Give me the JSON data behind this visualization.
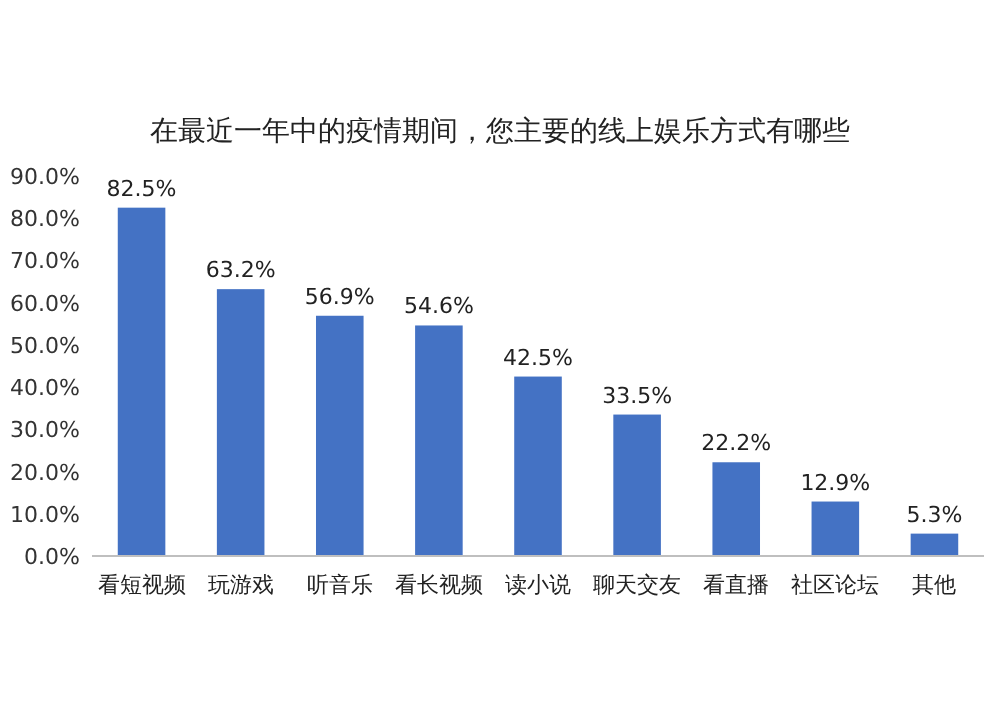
{
  "chart_data": {
    "type": "bar",
    "title": "在最近一年中的疫情期间，您主要的线上娱乐方式有哪些",
    "categories": [
      "看短视频",
      "玩游戏",
      "听音乐",
      "看长视频",
      "读小说",
      "聊天交友",
      "看直播",
      "社区论坛",
      "其他"
    ],
    "values": [
      82.5,
      63.2,
      56.9,
      54.6,
      42.5,
      33.5,
      22.2,
      12.9,
      5.3
    ],
    "value_labels": [
      "82.5%",
      "63.2%",
      "56.9%",
      "54.6%",
      "42.5%",
      "33.5%",
      "22.2%",
      "12.9%",
      "5.3%"
    ],
    "color": "#4472c4",
    "ylim": [
      0,
      90
    ],
    "yticks": [
      {
        "value": 0,
        "label": "0.0%"
      },
      {
        "value": 10,
        "label": "10.0%"
      },
      {
        "value": 20,
        "label": "20.0%"
      },
      {
        "value": 30,
        "label": "30.0%"
      },
      {
        "value": 40,
        "label": "40.0%"
      },
      {
        "value": 50,
        "label": "50.0%"
      },
      {
        "value": 60,
        "label": "60.0%"
      },
      {
        "value": 70,
        "label": "70.0%"
      },
      {
        "value": 80,
        "label": "80.0%"
      },
      {
        "value": 90,
        "label": "90.0%"
      }
    ],
    "grid": false
  }
}
